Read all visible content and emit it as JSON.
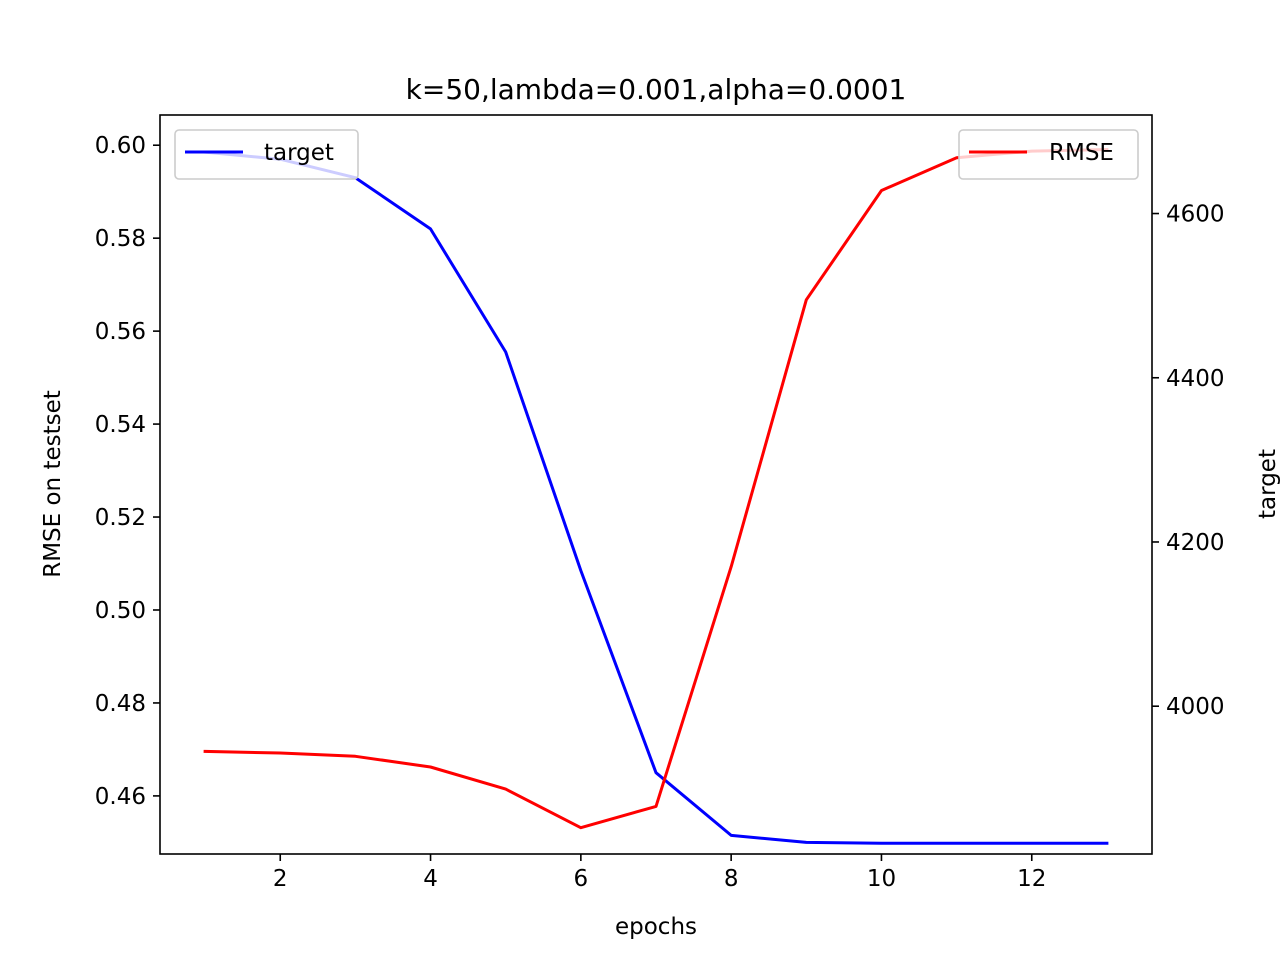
{
  "chart_data": {
    "type": "line",
    "title": "k=50,lambda=0.001,alpha=0.0001",
    "xlabel": "epochs",
    "ylabel_left": "RMSE on testset",
    "ylabel_right": "target",
    "x": [
      1,
      2,
      3,
      4,
      5,
      6,
      7,
      8,
      9,
      10,
      11,
      12,
      13
    ],
    "xlim": [
      0.4,
      13.6
    ],
    "xticks": [
      2,
      4,
      6,
      8,
      10,
      12
    ],
    "ylim_left": [
      0.4475,
      0.6065
    ],
    "yticks_left": [
      "0.46",
      "0.48",
      "0.50",
      "0.52",
      "0.54",
      "0.56",
      "0.58",
      "0.60"
    ],
    "ylim_right": [
      3820,
      4720
    ],
    "yticks_right": [
      4000,
      4200,
      4400,
      4600
    ],
    "grid": false,
    "series": [
      {
        "name": "target",
        "axis": "left",
        "color": "#0000ff",
        "legend_position": "upper-left",
        "values": [
          0.5985,
          0.597,
          0.593,
          0.582,
          0.5555,
          0.5085,
          0.465,
          0.4515,
          0.45,
          0.4498,
          0.4498,
          0.4498,
          0.4498
        ]
      },
      {
        "name": "RMSE",
        "axis": "right",
        "color": "#ff0000",
        "legend_position": "upper-right",
        "values": [
          3945,
          3943,
          3939,
          3926,
          3899,
          3852,
          3878,
          4170,
          4495,
          4628,
          4668,
          4676,
          4678
        ]
      }
    ]
  }
}
